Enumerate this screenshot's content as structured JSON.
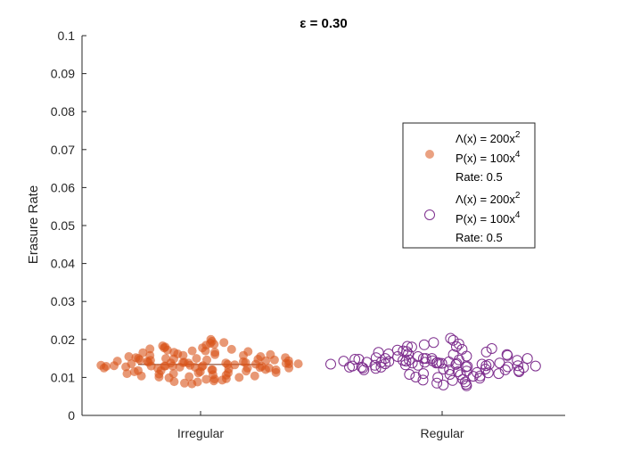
{
  "chart_data": {
    "type": "scatter",
    "title": "ε = 0.30",
    "xlabel": "",
    "ylabel": "Erasure Rate",
    "ylim": [
      0,
      0.1
    ],
    "yticks": [
      "0",
      "0.01",
      "0.02",
      "0.03",
      "0.04",
      "0.05",
      "0.06",
      "0.07",
      "0.08",
      "0.09",
      "0.1"
    ],
    "categories": [
      "Irregular",
      "Regular"
    ],
    "grid": false,
    "legend_position": "top-right",
    "series": [
      {
        "category": "Irregular",
        "marker": "filled-circle",
        "color": "#D95319",
        "legend": {
          "lambda": "Λ(x) = 200x",
          "lambda_exp": "2",
          "p": "P(x) = 100x",
          "p_exp": "4",
          "rate": "Rate: 0.5"
        },
        "mean": 0.0134,
        "values": [
          0.0125,
          0.0138,
          0.0142,
          0.0125,
          0.0127,
          0.0131,
          0.0141,
          0.013,
          0.0136,
          0.012,
          0.0146,
          0.0129,
          0.0139,
          0.0132,
          0.0122,
          0.0118,
          0.0146,
          0.0128,
          0.0152,
          0.0125,
          0.0138,
          0.0113,
          0.016,
          0.0109,
          0.0144,
          0.0132,
          0.0165,
          0.0106,
          0.015,
          0.012,
          0.017,
          0.0101,
          0.0158,
          0.0127,
          0.0175,
          0.0096,
          0.014,
          0.0155,
          0.0112,
          0.018,
          0.0093,
          0.0162,
          0.0125,
          0.0185,
          0.0089,
          0.0148,
          0.017,
          0.0104,
          0.019,
          0.0085,
          0.0136,
          0.0178,
          0.0118,
          0.0195,
          0.0083,
          0.0152,
          0.0166,
          0.0099,
          0.02,
          0.0088,
          0.0143,
          0.0187,
          0.011,
          0.0192,
          0.0095,
          0.0158,
          0.0174,
          0.0102,
          0.0183,
          0.0091,
          0.013,
          0.0168,
          0.0115,
          0.0178,
          0.0097,
          0.0149,
          0.016,
          0.0107,
          0.0172,
          0.01,
          0.0138,
          0.0155,
          0.0112,
          0.0166,
          0.0104,
          0.0146,
          0.015,
          0.0117,
          0.0158,
          0.011,
          0.0134,
          0.0145,
          0.0121,
          0.015,
          0.0115,
          0.0139,
          0.013,
          0.0144,
          0.012,
          0.0136,
          0.0126,
          0.014,
          0.0129,
          0.0133,
          0.0124,
          0.0137,
          0.0131,
          0.0128,
          0.0135,
          0.013
        ]
      },
      {
        "category": "Regular",
        "marker": "open-circle",
        "color": "#7E2F8E",
        "legend": {
          "lambda": "Λ(x) = 200x",
          "lambda_exp": "2",
          "p": "P(x) = 100x",
          "p_exp": "4",
          "rate": "Rate: 0.5"
        },
        "values": [
          0.0135,
          0.0128,
          0.0142,
          0.012,
          0.0138,
          0.0125,
          0.0131,
          0.0146,
          0.0118,
          0.0134,
          0.015,
          0.0112,
          0.014,
          0.0127,
          0.0156,
          0.0108,
          0.0145,
          0.0122,
          0.0162,
          0.0103,
          0.0138,
          0.015,
          0.0115,
          0.0168,
          0.0098,
          0.0144,
          0.013,
          0.0174,
          0.0093,
          0.0158,
          0.012,
          0.018,
          0.0088,
          0.015,
          0.0166,
          0.0107,
          0.0186,
          0.0082,
          0.0138,
          0.0172,
          0.0113,
          0.0192,
          0.0078,
          0.016,
          0.0127,
          0.0198,
          0.0085,
          0.0148,
          0.0181,
          0.0101,
          0.0203,
          0.008,
          0.014,
          0.0188,
          0.011,
          0.0176,
          0.0092,
          0.0155,
          0.0167,
          0.01,
          0.0182,
          0.0095,
          0.0143,
          0.016,
          0.0108,
          0.017,
          0.0104,
          0.015,
          0.0148,
          0.0117,
          0.0162,
          0.011,
          0.0137,
          0.0152,
          0.0122,
          0.0155,
          0.0115,
          0.0146,
          0.014,
          0.0128,
          0.015,
          0.012,
          0.0135,
          0.0145,
          0.0126,
          0.0141,
          0.0124,
          0.0138,
          0.0132,
          0.0143,
          0.0129,
          0.0136,
          0.0131,
          0.0139,
          0.0127,
          0.0134,
          0.0133,
          0.013,
          0.0137,
          0.0132
        ]
      }
    ]
  }
}
